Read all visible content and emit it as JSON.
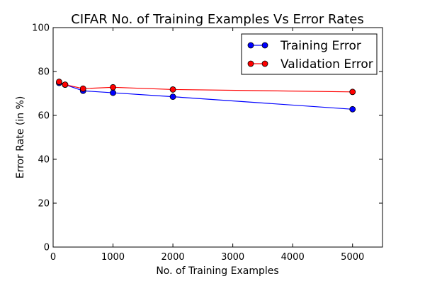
{
  "chart_data": {
    "type": "line",
    "title": "CIFAR No. of Training Examples Vs Error Rates",
    "xlabel": "No. of Training Examples",
    "ylabel": "Error Rate (in %)",
    "xlim": [
      0,
      5500
    ],
    "ylim": [
      0,
      100
    ],
    "xticks": [
      0,
      1000,
      2000,
      3000,
      4000,
      5000
    ],
    "yticks": [
      0,
      20,
      40,
      60,
      80,
      100
    ],
    "grid": false,
    "legend_position": "top-right",
    "series": [
      {
        "name": "Training Error",
        "color": "#0000ff",
        "marker": "circle",
        "x": [
          100,
          200,
          500,
          1000,
          2000,
          5000
        ],
        "y": [
          74.8,
          74.0,
          71.2,
          70.3,
          68.5,
          62.8
        ]
      },
      {
        "name": "Validation Error",
        "color": "#ff0000",
        "marker": "circle",
        "x": [
          100,
          200,
          500,
          1000,
          2000,
          5000
        ],
        "y": [
          75.3,
          74.0,
          72.2,
          72.8,
          71.8,
          70.7
        ]
      }
    ]
  }
}
